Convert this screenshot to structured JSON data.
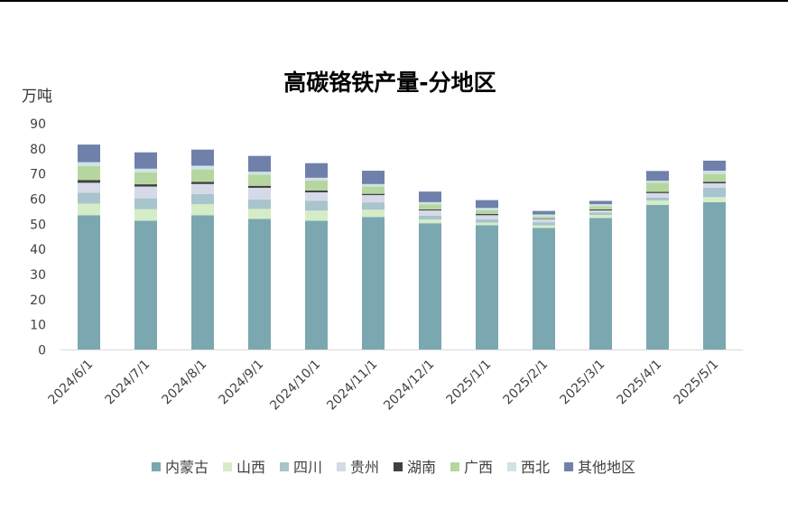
{
  "chart_data": {
    "type": "bar",
    "stacked": true,
    "title": "高碳铬铁产量-分地区",
    "ylabel": "万吨",
    "xlabel": "",
    "ylim": [
      0,
      90
    ],
    "yticks": [
      0,
      10,
      20,
      30,
      40,
      50,
      60,
      70,
      80,
      90
    ],
    "grid": false,
    "legend_position": "bottom",
    "categories": [
      "2024/6/1",
      "2024/7/1",
      "2024/8/1",
      "2024/9/1",
      "2024/10/1",
      "2024/11/1",
      "2024/12/1",
      "2025/1/1",
      "2025/2/1",
      "2025/3/1",
      "2025/4/1",
      "2025/5/1"
    ],
    "series": [
      {
        "name": "内蒙古",
        "color": "#7BA7B0",
        "values": [
          53.6,
          51.4,
          53.6,
          52.1,
          51.4,
          52.9,
          50.4,
          49.6,
          48.5,
          52.5,
          57.7,
          58.8
        ]
      },
      {
        "name": "山西",
        "color": "#D4EDC6",
        "values": [
          4.6,
          4.6,
          4.4,
          4.0,
          4.0,
          2.9,
          1.5,
          1.0,
          1.0,
          1.2,
          1.8,
          2.0
        ]
      },
      {
        "name": "四川",
        "color": "#A8C4CC",
        "values": [
          4.3,
          4.3,
          4.0,
          3.7,
          3.9,
          2.9,
          1.5,
          1.4,
          1.3,
          1.0,
          1.1,
          3.7
        ]
      },
      {
        "name": "贵州",
        "color": "#D5D9E8",
        "values": [
          4.0,
          4.7,
          4.0,
          4.7,
          3.4,
          2.9,
          2.1,
          1.6,
          1.3,
          0.8,
          1.8,
          1.8
        ]
      },
      {
        "name": "湖南",
        "color": "#404040",
        "values": [
          1.1,
          0.9,
          0.9,
          0.8,
          0.7,
          0.5,
          0.4,
          0.5,
          0.2,
          0.4,
          0.5,
          0.6
        ]
      },
      {
        "name": "广西",
        "color": "#B5D79F",
        "values": [
          5.6,
          4.8,
          4.9,
          4.5,
          4.0,
          2.9,
          2.0,
          1.5,
          0.8,
          1.3,
          3.6,
          3.1
        ]
      },
      {
        "name": "西北",
        "color": "#D0E2E6",
        "values": [
          1.5,
          1.4,
          1.5,
          1.1,
          1.1,
          1.0,
          0.9,
          0.9,
          0.8,
          0.8,
          0.8,
          1.3
        ]
      },
      {
        "name": "其他地区",
        "color": "#6F80AA",
        "values": [
          7.0,
          6.5,
          6.4,
          6.3,
          5.8,
          5.3,
          4.2,
          3.1,
          1.4,
          1.3,
          3.9,
          4.0
        ]
      }
    ]
  }
}
